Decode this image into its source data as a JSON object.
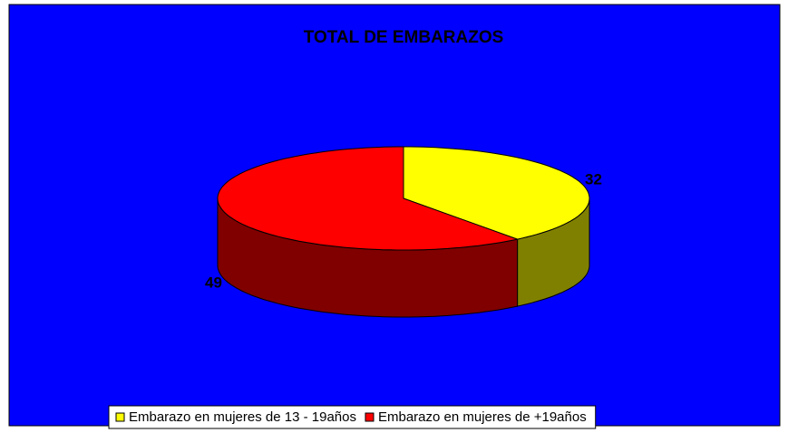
{
  "chart_data": {
    "type": "pie",
    "title": "TOTAL DE EMBARAZOS",
    "categories": [
      "Embarazo en mujeres de 13 - 19años",
      "Embarazo en mujeres de +19años"
    ],
    "values": [
      32,
      49
    ],
    "colors": [
      "#ffff00",
      "#ff0000"
    ],
    "background": "#0000ff",
    "legend": "bottom"
  }
}
